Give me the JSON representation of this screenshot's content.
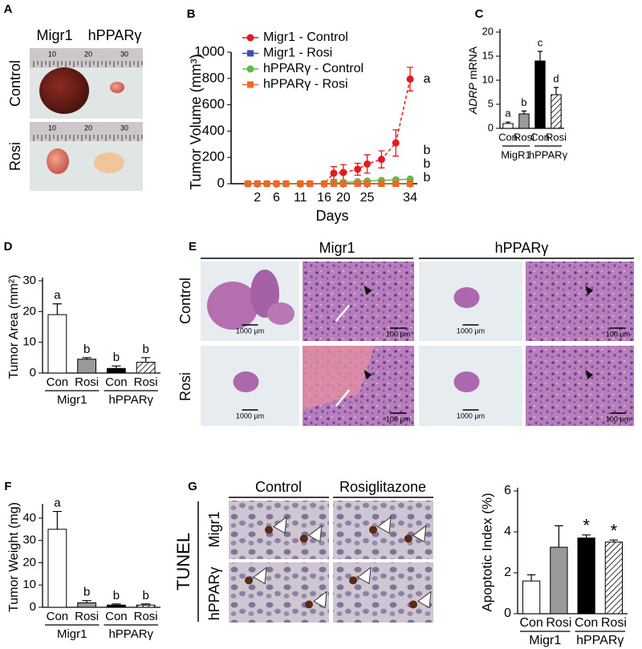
{
  "figure": {
    "panel_a": {
      "label": "A",
      "columns": [
        "Migr1",
        "hPPARγ"
      ],
      "rows": [
        "Control",
        "Rosi"
      ],
      "ruler_ticks": [
        "10",
        "20",
        "30"
      ]
    },
    "panel_e": {
      "label": "E",
      "columns": [
        "Migr1",
        "hPPARγ"
      ],
      "rows": [
        "Control",
        "Rosi"
      ],
      "scale_low": "1000 μm",
      "scale_high": "100 μm"
    },
    "panel_g": {
      "label": "G",
      "columns": [
        "Control",
        "Rosiglitazone"
      ],
      "stain": "TUNEL",
      "rows": [
        "Migr1",
        "hPPARγ"
      ]
    }
  },
  "chart_data": [
    {
      "type": "line",
      "panel_label": "B",
      "y_label": "Tumor Volume (mm³)",
      "x_label": "Days",
      "x": [
        0,
        2,
        4,
        6,
        8,
        11,
        13,
        16,
        18,
        20,
        23,
        25,
        28,
        31,
        34
      ],
      "xlim": [
        -3.5,
        35.5
      ],
      "xticks": [
        2,
        6,
        11,
        16,
        20,
        25,
        34
      ],
      "ylim": [
        0,
        1000
      ],
      "yticks": [
        0,
        200,
        400,
        600,
        800,
        1000
      ],
      "series": [
        {
          "name": "Migr1 - Control",
          "color": "#e41a1c",
          "marker": "circle",
          "dashed": true,
          "values": [
            0,
            0,
            0,
            0,
            0,
            0,
            0,
            0,
            80,
            85,
            110,
            150,
            185,
            310,
            795
          ],
          "errors": [
            null,
            null,
            null,
            null,
            null,
            null,
            null,
            null,
            50,
            60,
            45,
            70,
            65,
            100,
            90
          ]
        },
        {
          "name": "Migr1 - Rosi",
          "color": "#3b4fb8",
          "marker": "square",
          "dashed": false,
          "values": [
            0,
            0,
            0,
            0,
            0,
            0,
            0,
            0,
            0,
            0,
            0,
            0,
            0,
            0,
            0
          ]
        },
        {
          "name": "hPPARγ - Control",
          "color": "#62b946",
          "marker": "circle",
          "dashed": false,
          "values": [
            0,
            0,
            0,
            0,
            0,
            0,
            0,
            0,
            5,
            10,
            15,
            20,
            25,
            30,
            35
          ]
        },
        {
          "name": "hPPARγ - Rosi",
          "color": "#f26522",
          "marker": "square",
          "dashed": false,
          "values": [
            0,
            0,
            0,
            0,
            0,
            0,
            0,
            0,
            0,
            0,
            0,
            0,
            0,
            0,
            0
          ]
        }
      ],
      "annotations": [
        "a",
        "b",
        "b",
        "b"
      ]
    },
    {
      "type": "bar",
      "panel_label": "C",
      "y_label_italic": "ADRP",
      "y_label": "mRNA",
      "categories": [
        "Con",
        "Rosi",
        "Con",
        "Rosi"
      ],
      "groups": [
        "MigR1",
        "hPPARγ"
      ],
      "values": [
        1,
        3,
        14,
        7
      ],
      "errors": [
        0.3,
        0.6,
        2,
        1.5
      ],
      "colors": [
        "#ffffff",
        "#9a9a9a",
        "#000000",
        "#ffffff"
      ],
      "hatched": [
        false,
        false,
        false,
        true
      ],
      "letters": [
        "a",
        "b",
        "c",
        "d"
      ],
      "ylim": [
        0,
        20
      ],
      "yticks": [
        0,
        5,
        10,
        15,
        20
      ]
    },
    {
      "type": "bar",
      "panel_label": "D",
      "y_label": "Tumor Area (mm²)",
      "categories": [
        "Con",
        "Rosi",
        "Con",
        "Rosi"
      ],
      "groups": [
        "Migr1",
        "hPPARγ"
      ],
      "values": [
        19,
        4.5,
        1.5,
        3.5
      ],
      "errors": [
        3.5,
        0.5,
        0.8,
        1.5
      ],
      "colors": [
        "#ffffff",
        "#9a9a9a",
        "#000000",
        "#ffffff"
      ],
      "hatched": [
        false,
        false,
        false,
        true
      ],
      "letters": [
        "a",
        "b",
        "b",
        "b"
      ],
      "ylim": [
        0,
        30
      ],
      "yticks": [
        0,
        10,
        20,
        30
      ]
    },
    {
      "type": "bar",
      "panel_label": "F",
      "y_label": "Tumor Weight (mg)",
      "categories": [
        "Con",
        "Rosi",
        "Con",
        "Rosi"
      ],
      "groups": [
        "Migr1",
        "hPPARγ"
      ],
      "values": [
        35,
        2,
        1,
        1
      ],
      "errors": [
        8,
        1,
        0.5,
        0.5
      ],
      "colors": [
        "#ffffff",
        "#9a9a9a",
        "#000000",
        "#ffffff"
      ],
      "hatched": [
        false,
        false,
        false,
        true
      ],
      "letters": [
        "a",
        "b",
        "b",
        "b"
      ],
      "ylim": [
        0,
        45
      ],
      "yticks": [
        0,
        10,
        20,
        30,
        40
      ]
    },
    {
      "type": "bar",
      "y_label": "Apoptotic Index (%)",
      "categories": [
        "Con",
        "Rosi",
        "Con",
        "Rosi"
      ],
      "groups": [
        "Migr1",
        "hPPARγ"
      ],
      "values": [
        1.6,
        3.25,
        3.7,
        3.5
      ],
      "errors": [
        0.3,
        1.05,
        0.15,
        0.1
      ],
      "colors": [
        "#ffffff",
        "#9a9a9a",
        "#000000",
        "#ffffff"
      ],
      "hatched": [
        false,
        false,
        false,
        true
      ],
      "letters": [
        null,
        null,
        "*",
        "*"
      ],
      "ylim": [
        0,
        6
      ],
      "yticks": [
        0,
        2,
        4,
        6
      ]
    }
  ]
}
